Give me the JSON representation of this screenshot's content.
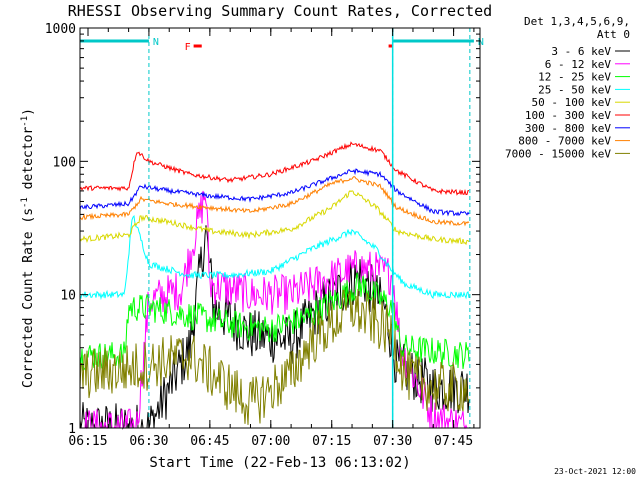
{
  "chart_data": {
    "type": "line",
    "title": "RHESSI Observing Summary Count Rates, Corrected",
    "xlabel": "Start Time (22-Feb-13 06:13:02)",
    "ylabel_main": "Corrected Count Rate (s",
    "ylabel_sup1": "-1",
    "ylabel_mid": " detector",
    "ylabel_sup2": "-1",
    "ylabel_end": ")",
    "x_axis": {
      "start": "06:13:02",
      "end": "07:51:30",
      "ticks": [
        "06:15",
        "06:30",
        "06:45",
        "07:00",
        "07:15",
        "07:30",
        "07:45"
      ]
    },
    "y_axis": {
      "scale": "log",
      "ylim": [
        1,
        1000
      ],
      "ticks": [
        "1",
        "10",
        "100",
        "1000"
      ]
    },
    "legend_header": [
      "Det 1,3,4,5,6,9,",
      "Att 0"
    ],
    "legend_placement": "right",
    "timestamp": "23-Oct-2021 12:00",
    "flags": [
      {
        "label": "N",
        "color": "#00c8c8",
        "from": "06:13",
        "to": "06:30"
      },
      {
        "label": "N",
        "color": "#00c8c8",
        "from": "07:30",
        "to": "07:50"
      },
      {
        "label": "F",
        "color": "#ff0000",
        "from": "06:41",
        "to": "06:43"
      },
      {
        "label": "",
        "color": "#ff0000",
        "from": "07:29",
        "to": "07:30"
      }
    ],
    "vertical_lines": [
      "06:30",
      "07:30",
      "07:49"
    ],
    "series": [
      {
        "name": "3 - 6 keV",
        "color": "#000000",
        "points": [
          [
            "06:13",
            1
          ],
          [
            "06:30",
            1
          ],
          [
            "06:40",
            4
          ],
          [
            "06:44",
            30
          ],
          [
            "06:46",
            8
          ],
          [
            "06:55",
            5
          ],
          [
            "07:05",
            4.5
          ],
          [
            "07:12",
            8
          ],
          [
            "07:22",
            14
          ],
          [
            "07:28",
            8
          ],
          [
            "07:31",
            3
          ],
          [
            "07:40",
            2
          ],
          [
            "07:49",
            2
          ]
        ]
      },
      {
        "name": "6 - 12 keV",
        "color": "#ff00ff",
        "points": [
          [
            "06:13",
            1
          ],
          [
            "06:27",
            1
          ],
          [
            "06:30",
            9
          ],
          [
            "06:38",
            11
          ],
          [
            "06:44",
            60
          ],
          [
            "06:45",
            12
          ],
          [
            "06:55",
            10
          ],
          [
            "07:05",
            10
          ],
          [
            "07:14",
            13
          ],
          [
            "07:22",
            16
          ],
          [
            "07:30",
            14
          ],
          [
            "07:32",
            4
          ],
          [
            "07:40",
            1.2
          ],
          [
            "07:49",
            1
          ]
        ]
      },
      {
        "name": "12 - 25 keV",
        "color": "#00ff00",
        "points": [
          [
            "06:13",
            3.5
          ],
          [
            "06:24",
            3.5
          ],
          [
            "06:25",
            8
          ],
          [
            "06:30",
            8
          ],
          [
            "06:40",
            7
          ],
          [
            "06:50",
            6
          ],
          [
            "07:00",
            5.5
          ],
          [
            "07:10",
            7
          ],
          [
            "07:22",
            12
          ],
          [
            "07:30",
            8
          ],
          [
            "07:32",
            4
          ],
          [
            "07:49",
            3.5
          ]
        ]
      },
      {
        "name": "25 - 50 keV",
        "color": "#00ffff",
        "points": [
          [
            "06:13",
            10
          ],
          [
            "06:24",
            10
          ],
          [
            "06:26",
            40
          ],
          [
            "06:30",
            17
          ],
          [
            "06:40",
            14
          ],
          [
            "06:50",
            14
          ],
          [
            "07:00",
            15
          ],
          [
            "07:10",
            22
          ],
          [
            "07:20",
            30
          ],
          [
            "07:26",
            22
          ],
          [
            "07:30",
            15
          ],
          [
            "07:33",
            12
          ],
          [
            "07:40",
            10
          ],
          [
            "07:49",
            10
          ]
        ]
      },
      {
        "name": "50 - 100 keV",
        "color": "#d8d800",
        "points": [
          [
            "06:13",
            26
          ],
          [
            "06:25",
            28
          ],
          [
            "06:28",
            38
          ],
          [
            "06:35",
            35
          ],
          [
            "06:45",
            30
          ],
          [
            "06:55",
            28
          ],
          [
            "07:05",
            31
          ],
          [
            "07:15",
            45
          ],
          [
            "07:20",
            60
          ],
          [
            "07:26",
            45
          ],
          [
            "07:31",
            30
          ],
          [
            "07:40",
            26
          ],
          [
            "07:49",
            25
          ]
        ]
      },
      {
        "name": "100 - 300 keV",
        "color": "#ff0000",
        "points": [
          [
            "06:13",
            63
          ],
          [
            "06:25",
            63
          ],
          [
            "06:27",
            120
          ],
          [
            "06:30",
            100
          ],
          [
            "06:40",
            80
          ],
          [
            "06:50",
            72
          ],
          [
            "07:00",
            80
          ],
          [
            "07:10",
            100
          ],
          [
            "07:20",
            135
          ],
          [
            "07:27",
            120
          ],
          [
            "07:31",
            85
          ],
          [
            "07:40",
            60
          ],
          [
            "07:49",
            58
          ]
        ]
      },
      {
        "name": "300 - 800 keV",
        "color": "#0000ff",
        "points": [
          [
            "06:13",
            45
          ],
          [
            "06:25",
            48
          ],
          [
            "06:28",
            65
          ],
          [
            "06:35",
            60
          ],
          [
            "06:45",
            55
          ],
          [
            "06:55",
            52
          ],
          [
            "07:05",
            58
          ],
          [
            "07:15",
            75
          ],
          [
            "07:20",
            85
          ],
          [
            "07:27",
            80
          ],
          [
            "07:31",
            60
          ],
          [
            "07:40",
            42
          ],
          [
            "07:49",
            40
          ]
        ]
      },
      {
        "name": "800 - 7000 keV",
        "color": "#ff8000",
        "points": [
          [
            "06:13",
            38
          ],
          [
            "06:25",
            40
          ],
          [
            "06:28",
            52
          ],
          [
            "06:35",
            48
          ],
          [
            "06:45",
            45
          ],
          [
            "06:55",
            42
          ],
          [
            "07:05",
            48
          ],
          [
            "07:15",
            68
          ],
          [
            "07:20",
            75
          ],
          [
            "07:27",
            65
          ],
          [
            "07:31",
            45
          ],
          [
            "07:40",
            35
          ],
          [
            "07:49",
            34
          ]
        ]
      },
      {
        "name": "7000 - 15000 keV",
        "color": "#808000",
        "points": [
          [
            "06:13",
            2.5
          ],
          [
            "06:25",
            2.8
          ],
          [
            "06:30",
            3
          ],
          [
            "06:40",
            3.5
          ],
          [
            "06:50",
            2
          ],
          [
            "06:55",
            1.5
          ],
          [
            "07:05",
            2.5
          ],
          [
            "07:10",
            4.5
          ],
          [
            "07:20",
            8
          ],
          [
            "07:30",
            5
          ],
          [
            "07:33",
            2.5
          ],
          [
            "07:40",
            2
          ],
          [
            "07:49",
            2
          ]
        ]
      }
    ]
  }
}
